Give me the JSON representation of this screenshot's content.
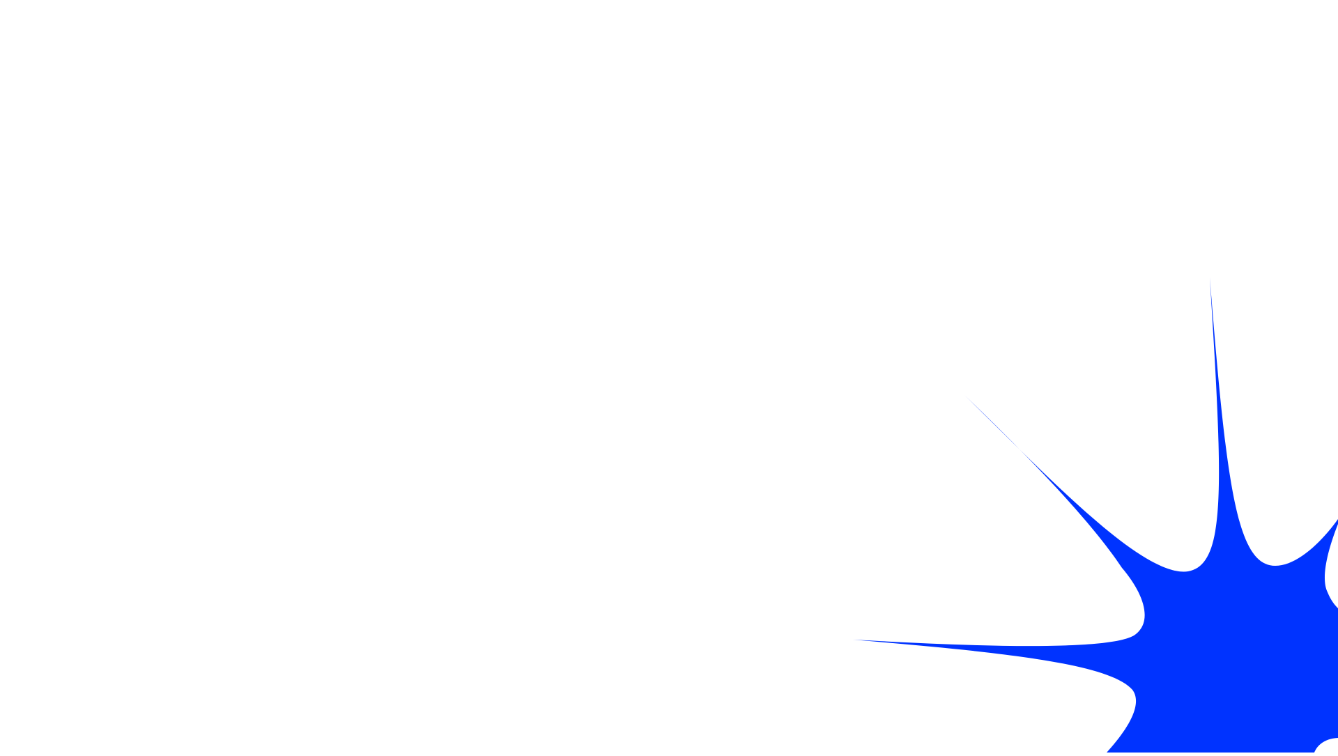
{
  "background_color": "#ffffff",
  "shape": {
    "type": "star-burst",
    "fill_color": "#0033ff"
  }
}
